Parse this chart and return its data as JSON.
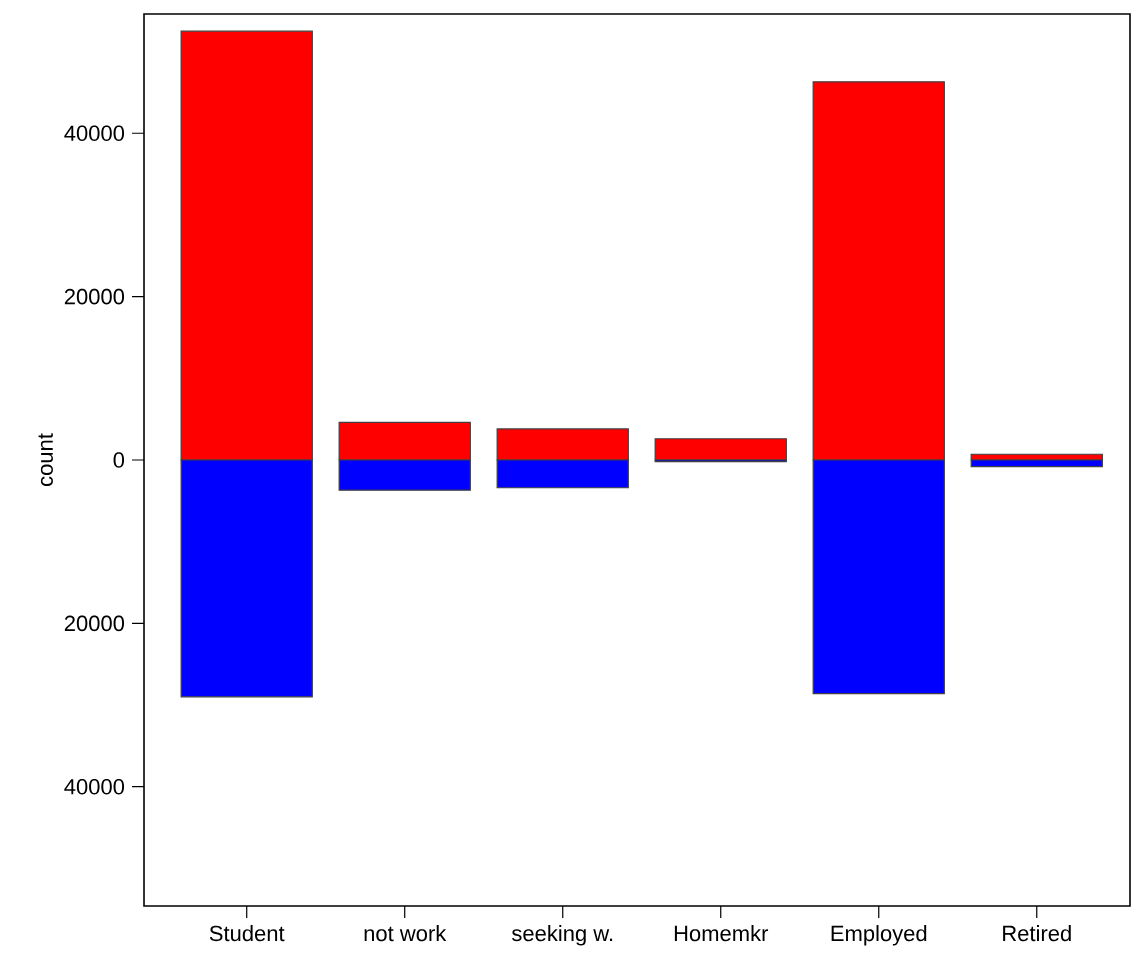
{
  "chart_data": {
    "type": "bar",
    "ylabel": "count",
    "categories": [
      "Student",
      "not work",
      "seeking w.",
      "Homemkr",
      "Employed",
      "Retired"
    ],
    "series": [
      {
        "color": "#ff0000",
        "values": [
          52500,
          4600,
          3800,
          2600,
          46300,
          700
        ]
      },
      {
        "color": "#0000ff",
        "values": [
          -29000,
          -3700,
          -3400,
          -200,
          -28600,
          -800
        ]
      }
    ],
    "stacked": true,
    "ylim": [
      -54600,
      54600
    ],
    "yticks": [
      {
        "value": -40000,
        "label": "40000"
      },
      {
        "value": -20000,
        "label": "20000"
      },
      0,
      20000,
      40000
    ]
  }
}
